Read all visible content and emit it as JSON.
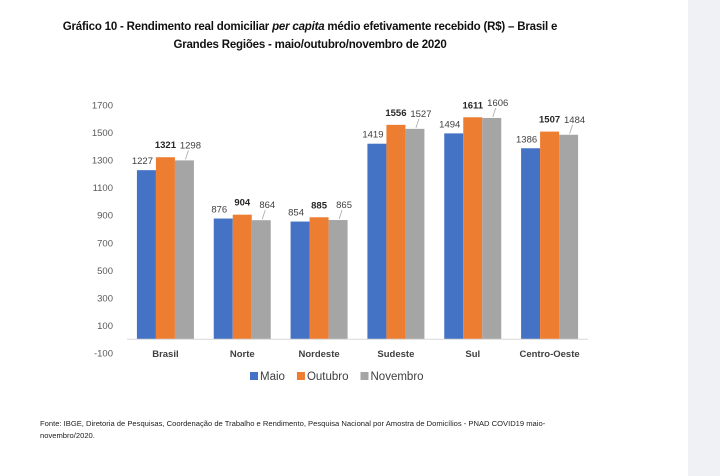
{
  "chart_data": {
    "type": "bar",
    "title_prefix": "Gráfico 10 - Rendimento real domiciliar ",
    "title_italic": "per capita",
    "title_suffix": " médio efetivamente recebido (R$) – Brasil e",
    "title_line2": "Grandes Regiões - maio/outubro/novembro de 2020",
    "xlabel": "",
    "ylabel": "",
    "categories": [
      "Brasil",
      "Norte",
      "Nordeste",
      "Sudeste",
      "Sul",
      "Centro-Oeste"
    ],
    "series": [
      {
        "name": "Maio",
        "color": "#4472c4",
        "values": [
          1227,
          876,
          854,
          1419,
          1494,
          1386
        ]
      },
      {
        "name": "Outubro",
        "color": "#ed7d31",
        "values": [
          1321,
          904,
          885,
          1556,
          1611,
          1507
        ]
      },
      {
        "name": "Novembro",
        "color": "#a5a5a5",
        "values": [
          1298,
          864,
          865,
          1527,
          1606,
          1484
        ]
      }
    ],
    "yticks": [
      1700,
      1500,
      1300,
      1100,
      900,
      700,
      500,
      300,
      100,
      -100
    ],
    "ylim": [
      -100,
      1700
    ],
    "grid": false,
    "legend_position": "bottom-center",
    "source": "Fonte: IBGE, Diretoria de Pesquisas, Coordenação de Trabalho e Rendimento, Pesquisa Nacional por Amostra de Domicílios - PNAD COVID19 maio-novembro/2020."
  }
}
